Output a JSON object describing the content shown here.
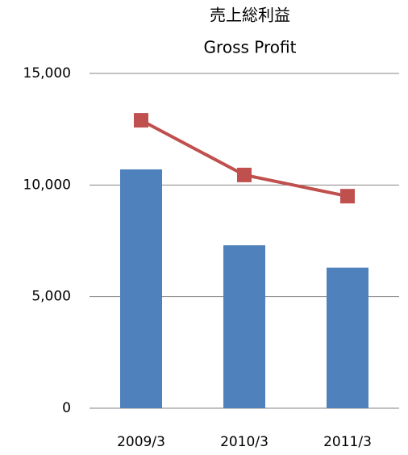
{
  "chart_data": {
    "type": "bar",
    "title": "売上総利益",
    "subtitle": "Gross Profit",
    "categories": [
      "2009/3",
      "2010/3",
      "2011/3"
    ],
    "series": [
      {
        "type": "bar",
        "color": "#4f81bd",
        "values": [
          10700,
          7300,
          6300
        ]
      },
      {
        "type": "line",
        "color": "#c0504d",
        "values": [
          12900,
          10450,
          9500
        ]
      }
    ],
    "ylim": [
      0,
      15000
    ],
    "yticks": [
      0,
      {
        "value": 5000,
        "label": "5,000"
      },
      {
        "value": 10000,
        "label": "10,000"
      },
      {
        "value": 15000,
        "label": "15,000"
      }
    ],
    "grid": true
  }
}
